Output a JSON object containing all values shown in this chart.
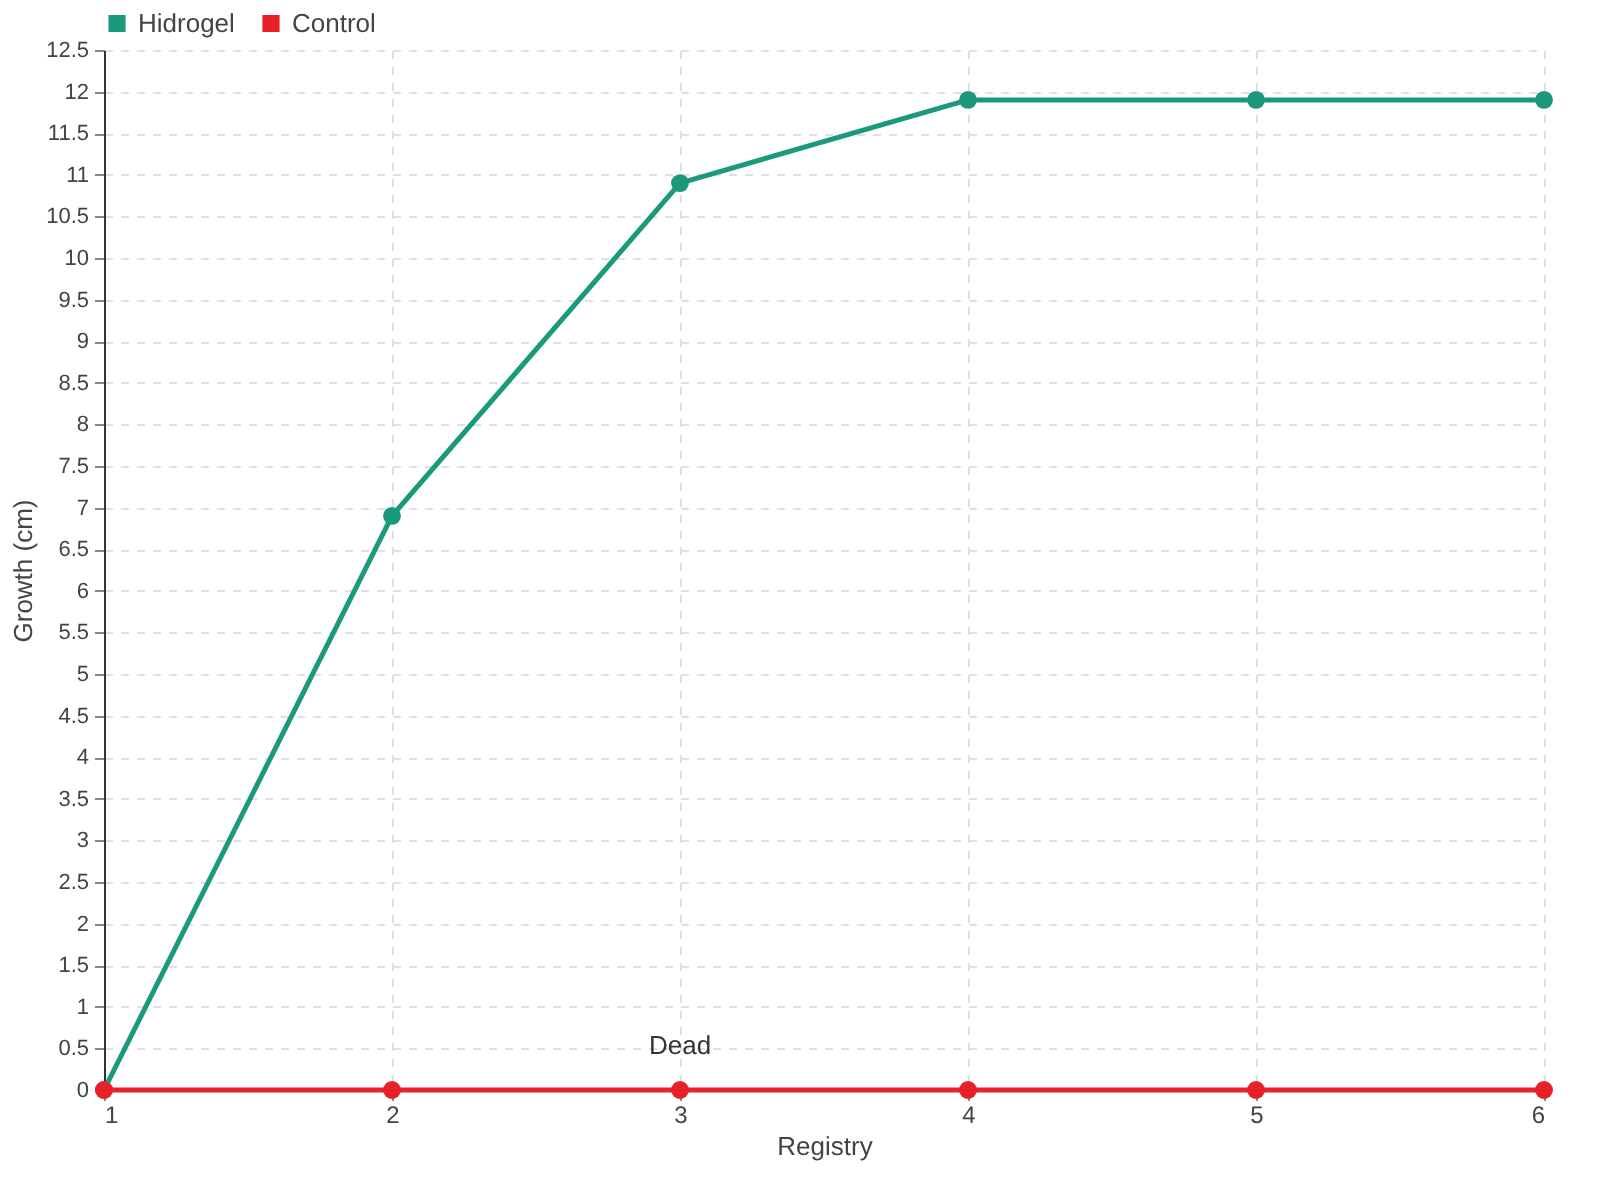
{
  "chart_data": {
    "type": "line",
    "xlabel": "Registry",
    "ylabel": "Growth (cm)",
    "categories": [
      "1",
      "2",
      "3",
      "4",
      "5",
      "6"
    ],
    "series": [
      {
        "name": "Hidrogel",
        "color": "#1a9a7a",
        "values": [
          0,
          6.9,
          10.9,
          11.9,
          11.9,
          11.9
        ]
      },
      {
        "name": "Control",
        "color": "#e8202a",
        "values": [
          0,
          0,
          0,
          0,
          0,
          0
        ]
      }
    ],
    "ylim": [
      0,
      12.5
    ],
    "yticks": [
      0,
      0.5,
      1,
      1.5,
      2,
      2.5,
      3,
      3.5,
      4,
      4.5,
      5,
      5.5,
      6,
      6.5,
      7,
      7.5,
      8,
      8.5,
      9,
      9.5,
      10,
      10.5,
      11,
      11.5,
      12,
      12.5
    ],
    "grid": true,
    "legend": "top left",
    "marker": "circle",
    "line_style": "solid",
    "annotations": [
      {
        "text": "Dead",
        "x": "3",
        "y": 0
      }
    ]
  }
}
